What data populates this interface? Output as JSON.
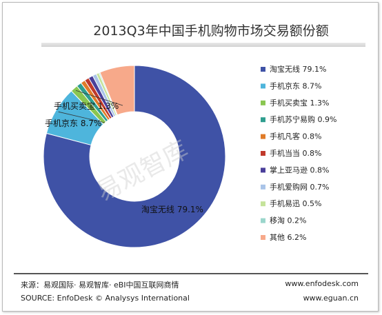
{
  "title": "2013Q3年中国手机购物市场交易额份额",
  "chart_data": {
    "type": "pie",
    "title": "2013Q3年中国手机购物市场交易额份额",
    "series": [
      {
        "name": "淘宝无线",
        "label": "淘宝无线 79.1%",
        "value": 79.1,
        "color": "#3f52a6"
      },
      {
        "name": "手机京东",
        "label": "手机京东 8.7%",
        "value": 8.7,
        "color": "#4eb5dc"
      },
      {
        "name": "手机买卖宝",
        "label": "手机买卖宝 1.3%",
        "value": 1.3,
        "color": "#8ac650"
      },
      {
        "name": "手机苏宁易购",
        "label": "手机苏宁易购 0.9%",
        "value": 0.9,
        "color": "#2f9e8f"
      },
      {
        "name": "手机凡客",
        "label": "手机凡客 0.8%",
        "value": 0.8,
        "color": "#e07b28"
      },
      {
        "name": "手机当当",
        "label": "手机当当 0.8%",
        "value": 0.8,
        "color": "#c0392b"
      },
      {
        "name": "掌上亚马逊",
        "label": "掌上亚马逊 0.8%",
        "value": 0.8,
        "color": "#4a3f9a"
      },
      {
        "name": "手机爱购网",
        "label": "手机爱购网 0.7%",
        "value": 0.7,
        "color": "#a9c4e8"
      },
      {
        "name": "手机易迅",
        "label": "手机易迅 0.5%",
        "value": 0.5,
        "color": "#c5e39a"
      },
      {
        "name": "移淘",
        "label": "移淘 0.2%",
        "value": 0.2,
        "color": "#9bd6cc"
      },
      {
        "name": "其他",
        "label": "其他 6.2%",
        "value": 6.2,
        "color": "#f7a98a"
      }
    ],
    "slice_labels": [
      {
        "text": "淘宝无线 79.1%"
      },
      {
        "text": "手机京东 8.7%"
      },
      {
        "text": "手机买卖宝 1.3%"
      }
    ],
    "legend_position": "right"
  },
  "watermark": "易观智库",
  "footer": {
    "source_cn": "来源：易观国际· 易观智库· eBI中国互联网商情",
    "source_en": "SOURCE: EnfoDesk © Analysys International",
    "url1": "www.enfodesk.com",
    "url2": "www.eguan.cn"
  }
}
